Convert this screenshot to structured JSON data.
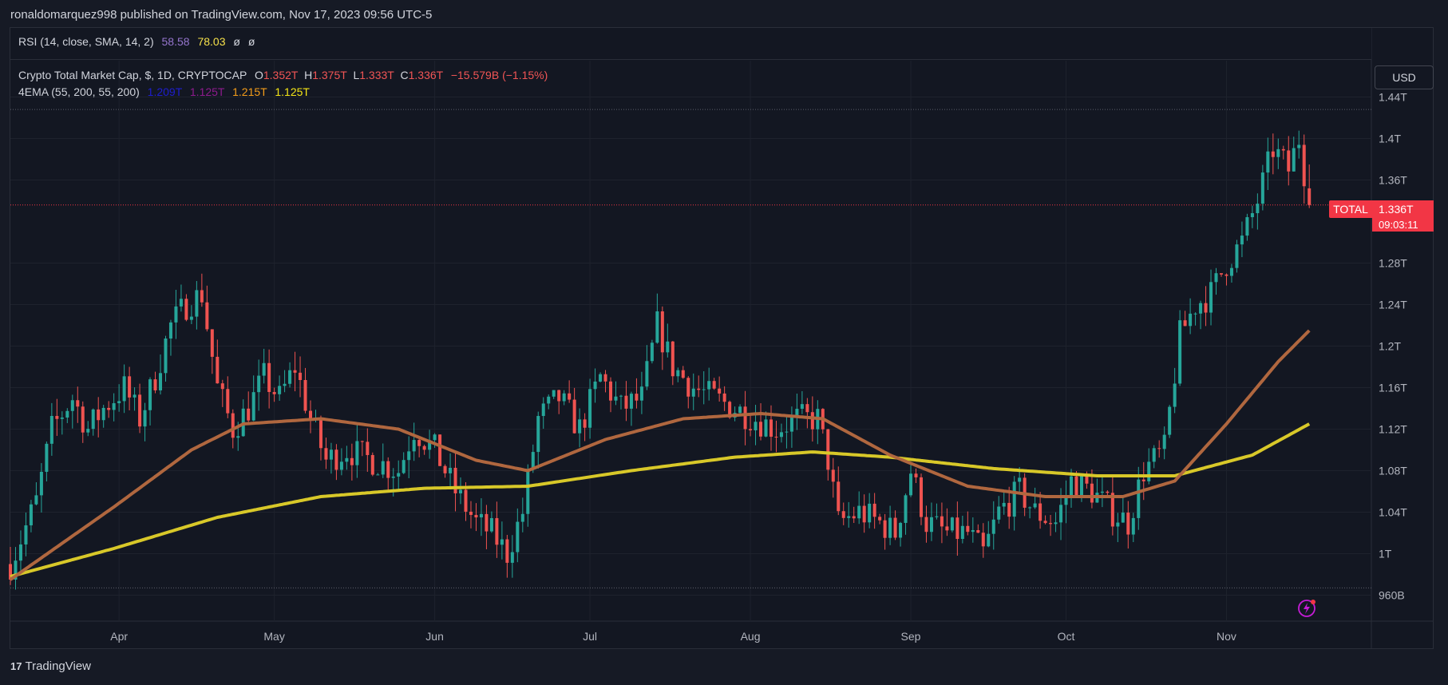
{
  "header": {
    "publish_line": "ronaldomarquez998 published on TradingView.com, Nov 17, 2023 09:56 UTC-5"
  },
  "rsi_legend": {
    "name": "RSI (14, close, SMA, 14, 2)",
    "v1": "58.58",
    "v2": "78.03",
    "e1": "ø",
    "e2": "ø"
  },
  "symbol_legend": {
    "name": "Crypto Total Market Cap, $, 1D, CRYPTOCAP",
    "o_label": "O",
    "o_value": "1.352T",
    "h_label": "H",
    "h_value": "1.375T",
    "l_label": "L",
    "l_value": "1.333T",
    "c_label": "C",
    "c_value": "1.336T",
    "change": "−15.579B (−1.15%)"
  },
  "ema_legend": {
    "name": "4EMA (55, 200, 55, 200)",
    "v1": "1.209T",
    "v2": "1.125T",
    "v3": "1.215T",
    "v4": "1.125T"
  },
  "price_scale": {
    "currency": "USD",
    "symbol_tag": "TOTAL",
    "last_price": "1.336T",
    "countdown": "09:03:11"
  },
  "footer": {
    "brand": "TradingView",
    "logo_glyph": "17"
  },
  "colors": {
    "up": "#26a69a",
    "down": "#ef5350",
    "ema_fast": "#b0673f",
    "ema_slow": "#d8c829",
    "rsi_v1": "#9575cd",
    "rsi_v2": "#f5e04a",
    "ema_v1": "#1e1ecf",
    "ema_v2": "#8e1b8e",
    "ema_v3": "#f59d1a",
    "ema_v4": "#f5e616",
    "accent": "#c51cd6"
  },
  "chart_data": {
    "type": "candlestick",
    "title": "Crypto Total Market Cap, $, 1D, CRYPTOCAP",
    "x_tick_labels": [
      "Apr",
      "May",
      "Jun",
      "Jul",
      "Aug",
      "Sep",
      "Oct",
      "Nov"
    ],
    "x_tick_days": [
      21,
      51,
      82,
      112,
      143,
      174,
      204,
      235
    ],
    "y_tick_labels": [
      "1.44T",
      "1.4T",
      "1.36T",
      "1.28T",
      "1.24T",
      "1.2T",
      "1.16T",
      "1.12T",
      "1.08T",
      "1.04T",
      "1T",
      "960B"
    ],
    "y_tick_values": [
      1.44,
      1.4,
      1.36,
      1.28,
      1.24,
      1.2,
      1.16,
      1.12,
      1.08,
      1.04,
      1.0,
      0.96
    ],
    "ylim": [
      0.935,
      1.475
    ],
    "x_range_days": [
      0,
      263
    ],
    "dotted_high": 1.428,
    "dotted_low": 0.967,
    "last_price": 1.336,
    "anchors": [
      {
        "day": 0,
        "price": 0.99
      },
      {
        "day": 5,
        "price": 1.05
      },
      {
        "day": 8,
        "price": 1.12
      },
      {
        "day": 12,
        "price": 1.15
      },
      {
        "day": 15,
        "price": 1.12
      },
      {
        "day": 18,
        "price": 1.14
      },
      {
        "day": 22,
        "price": 1.16
      },
      {
        "day": 25,
        "price": 1.13
      },
      {
        "day": 28,
        "price": 1.17
      },
      {
        "day": 31,
        "price": 1.22
      },
      {
        "day": 34,
        "price": 1.24
      },
      {
        "day": 37,
        "price": 1.25
      },
      {
        "day": 40,
        "price": 1.16
      },
      {
        "day": 43,
        "price": 1.12
      },
      {
        "day": 46,
        "price": 1.14
      },
      {
        "day": 49,
        "price": 1.17
      },
      {
        "day": 52,
        "price": 1.15
      },
      {
        "day": 55,
        "price": 1.18
      },
      {
        "day": 58,
        "price": 1.13
      },
      {
        "day": 61,
        "price": 1.09
      },
      {
        "day": 65,
        "price": 1.1
      },
      {
        "day": 70,
        "price": 1.09
      },
      {
        "day": 75,
        "price": 1.08
      },
      {
        "day": 78,
        "price": 1.12
      },
      {
        "day": 82,
        "price": 1.1
      },
      {
        "day": 86,
        "price": 1.06
      },
      {
        "day": 90,
        "price": 1.03
      },
      {
        "day": 93,
        "price": 1.02
      },
      {
        "day": 96,
        "price": 1.0
      },
      {
        "day": 99,
        "price": 1.04
      },
      {
        "day": 102,
        "price": 1.13
      },
      {
        "day": 106,
        "price": 1.15
      },
      {
        "day": 110,
        "price": 1.12
      },
      {
        "day": 114,
        "price": 1.17
      },
      {
        "day": 118,
        "price": 1.14
      },
      {
        "day": 122,
        "price": 1.15
      },
      {
        "day": 125,
        "price": 1.22
      },
      {
        "day": 128,
        "price": 1.18
      },
      {
        "day": 132,
        "price": 1.16
      },
      {
        "day": 136,
        "price": 1.15
      },
      {
        "day": 140,
        "price": 1.14
      },
      {
        "day": 144,
        "price": 1.13
      },
      {
        "day": 148,
        "price": 1.12
      },
      {
        "day": 152,
        "price": 1.13
      },
      {
        "day": 156,
        "price": 1.13
      },
      {
        "day": 158,
        "price": 1.09
      },
      {
        "day": 160,
        "price": 1.03
      },
      {
        "day": 164,
        "price": 1.04
      },
      {
        "day": 168,
        "price": 1.03
      },
      {
        "day": 171,
        "price": 1.02
      },
      {
        "day": 174,
        "price": 1.08
      },
      {
        "day": 177,
        "price": 1.03
      },
      {
        "day": 181,
        "price": 1.02
      },
      {
        "day": 185,
        "price": 1.02
      },
      {
        "day": 188,
        "price": 1.0
      },
      {
        "day": 191,
        "price": 1.04
      },
      {
        "day": 195,
        "price": 1.06
      },
      {
        "day": 198,
        "price": 1.04
      },
      {
        "day": 202,
        "price": 1.03
      },
      {
        "day": 205,
        "price": 1.07
      },
      {
        "day": 209,
        "price": 1.06
      },
      {
        "day": 213,
        "price": 1.04
      },
      {
        "day": 216,
        "price": 1.03
      },
      {
        "day": 219,
        "price": 1.08
      },
      {
        "day": 223,
        "price": 1.1
      },
      {
        "day": 226,
        "price": 1.21
      },
      {
        "day": 229,
        "price": 1.24
      },
      {
        "day": 232,
        "price": 1.25
      },
      {
        "day": 235,
        "price": 1.28
      },
      {
        "day": 238,
        "price": 1.3
      },
      {
        "day": 241,
        "price": 1.34
      },
      {
        "day": 244,
        "price": 1.39
      },
      {
        "day": 247,
        "price": 1.37
      },
      {
        "day": 249,
        "price": 1.4
      },
      {
        "day": 251,
        "price": 1.336
      }
    ],
    "ema_fast_points": [
      {
        "day": 0,
        "price": 0.975
      },
      {
        "day": 20,
        "price": 1.045
      },
      {
        "day": 35,
        "price": 1.1
      },
      {
        "day": 45,
        "price": 1.125
      },
      {
        "day": 60,
        "price": 1.13
      },
      {
        "day": 75,
        "price": 1.12
      },
      {
        "day": 90,
        "price": 1.09
      },
      {
        "day": 100,
        "price": 1.08
      },
      {
        "day": 115,
        "price": 1.11
      },
      {
        "day": 130,
        "price": 1.13
      },
      {
        "day": 145,
        "price": 1.135
      },
      {
        "day": 157,
        "price": 1.13
      },
      {
        "day": 170,
        "price": 1.095
      },
      {
        "day": 185,
        "price": 1.065
      },
      {
        "day": 200,
        "price": 1.055
      },
      {
        "day": 215,
        "price": 1.055
      },
      {
        "day": 225,
        "price": 1.07
      },
      {
        "day": 235,
        "price": 1.125
      },
      {
        "day": 245,
        "price": 1.185
      },
      {
        "day": 251,
        "price": 1.215
      }
    ],
    "ema_slow_points": [
      {
        "day": 0,
        "price": 0.978
      },
      {
        "day": 20,
        "price": 1.005
      },
      {
        "day": 40,
        "price": 1.035
      },
      {
        "day": 60,
        "price": 1.055
      },
      {
        "day": 80,
        "price": 1.063
      },
      {
        "day": 100,
        "price": 1.065
      },
      {
        "day": 120,
        "price": 1.08
      },
      {
        "day": 140,
        "price": 1.093
      },
      {
        "day": 155,
        "price": 1.098
      },
      {
        "day": 170,
        "price": 1.093
      },
      {
        "day": 190,
        "price": 1.082
      },
      {
        "day": 210,
        "price": 1.075
      },
      {
        "day": 225,
        "price": 1.075
      },
      {
        "day": 240,
        "price": 1.095
      },
      {
        "day": 251,
        "price": 1.125
      }
    ]
  }
}
